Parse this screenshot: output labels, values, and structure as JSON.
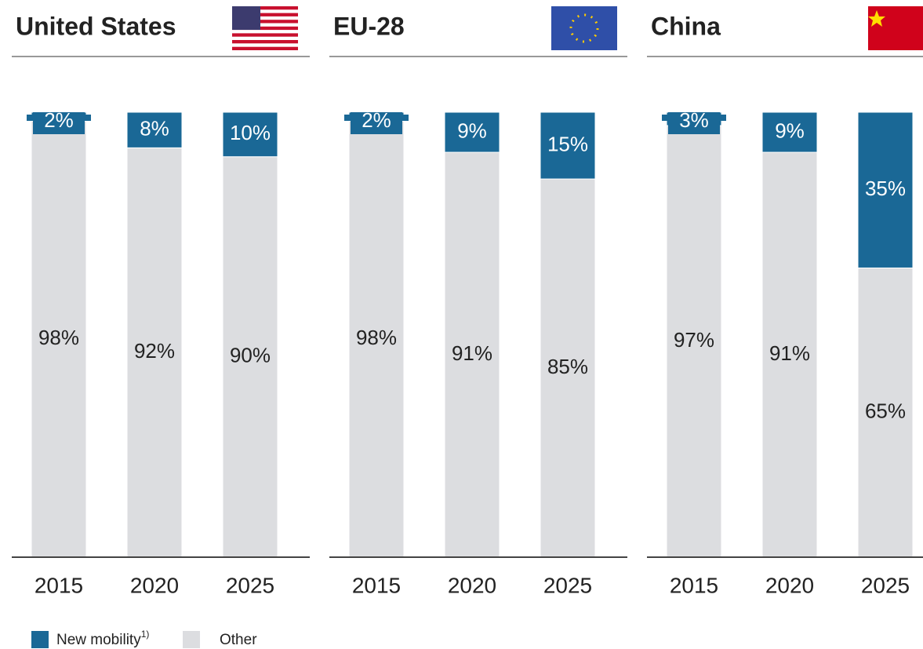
{
  "chart_data": [
    {
      "type": "bar",
      "stacked": true,
      "title": "United States",
      "categories": [
        "2015",
        "2020",
        "2025"
      ],
      "series": [
        {
          "name": "New mobility",
          "note": "1)",
          "color": "#1a6896",
          "values": [
            2,
            8,
            10
          ],
          "value_labels": [
            "2%",
            "8%",
            "10%"
          ]
        },
        {
          "name": "Other",
          "color": "#dcdde0",
          "values": [
            98,
            92,
            90
          ],
          "value_labels": [
            "98%",
            "92%",
            "90%"
          ]
        }
      ],
      "ylim": [
        0,
        100
      ]
    },
    {
      "type": "bar",
      "stacked": true,
      "title": "EU-28",
      "categories": [
        "2015",
        "2020",
        "2025"
      ],
      "series": [
        {
          "name": "New mobility",
          "color": "#1a6896",
          "values": [
            2,
            9,
            15
          ],
          "value_labels": [
            "2%",
            "9%",
            "15%"
          ]
        },
        {
          "name": "Other",
          "color": "#dcdde0",
          "values": [
            98,
            91,
            85
          ],
          "value_labels": [
            "98%",
            "91%",
            "85%"
          ]
        }
      ],
      "ylim": [
        0,
        100
      ]
    },
    {
      "type": "bar",
      "stacked": true,
      "title": "China",
      "categories": [
        "2015",
        "2020",
        "2025"
      ],
      "series": [
        {
          "name": "New mobility",
          "color": "#1a6896",
          "values": [
            3,
            9,
            35
          ],
          "value_labels": [
            "3%",
            "9%",
            "35%"
          ]
        },
        {
          "name": "Other",
          "color": "#dcdde0",
          "values": [
            97,
            91,
            65
          ],
          "value_labels": [
            "97%",
            "91%",
            "65%"
          ]
        }
      ],
      "ylim": [
        0,
        100
      ]
    }
  ]
}
